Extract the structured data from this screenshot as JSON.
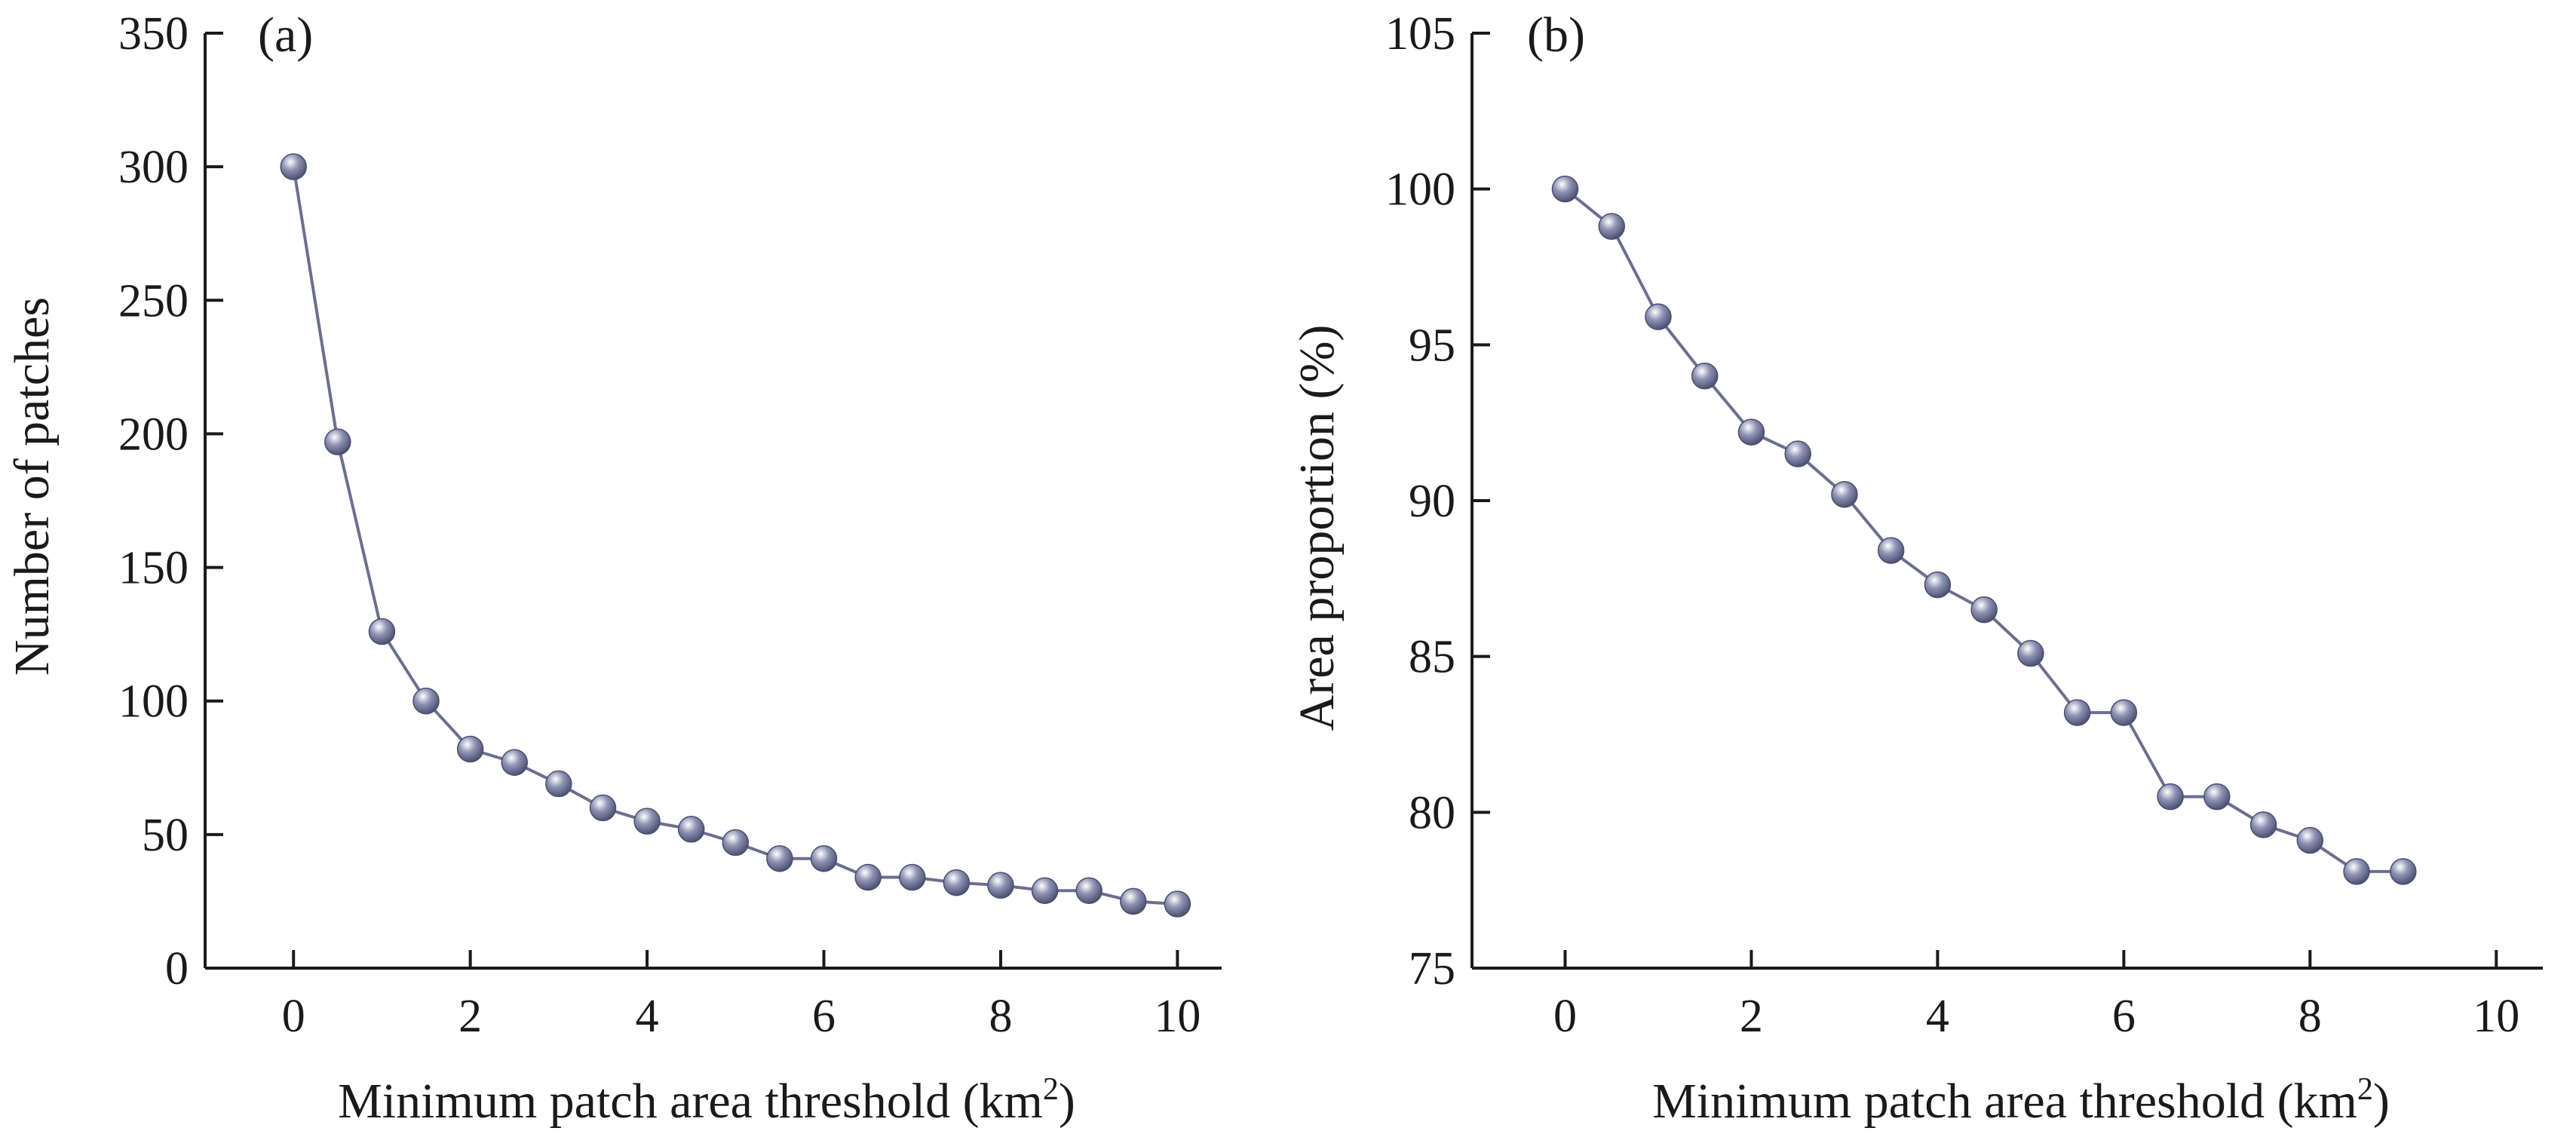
{
  "colors": {
    "line": "#6b6f8e",
    "marker_dark": "#4a4f70",
    "marker_mid": "#8e93b3",
    "marker_light": "#ffffff",
    "axis": "#1a1a1a"
  },
  "chart_data": [
    {
      "type": "line",
      "panel_label": "(a)",
      "xlabel": "Minimum patch area threshold (km",
      "xlabel_sup": "2",
      "xlabel_end": ")",
      "ylabel": "Number of patches",
      "xlim": [
        -1,
        10.5
      ],
      "ylim": [
        0,
        350
      ],
      "xticks": [
        0,
        2,
        4,
        6,
        8,
        10
      ],
      "yticks": [
        0,
        50,
        100,
        150,
        200,
        250,
        300,
        350
      ],
      "xtick_labels": [
        "0",
        "2",
        "4",
        "6",
        "8",
        "10"
      ],
      "ytick_labels": [
        "0",
        "50",
        "100",
        "150",
        "200",
        "250",
        "300",
        "350"
      ],
      "grid": false,
      "series": [
        {
          "x": [
            0,
            0.5,
            1,
            1.5,
            2,
            2.5,
            3,
            3.5,
            4,
            4.5,
            5,
            5.5,
            6,
            6.5,
            7,
            7.5,
            8,
            8.5,
            9,
            9.5,
            10
          ],
          "y": [
            300,
            197,
            126,
            100,
            82,
            77,
            69,
            60,
            55,
            52,
            47,
            41,
            41,
            34,
            34,
            32,
            31,
            29,
            29,
            25,
            24
          ]
        }
      ]
    },
    {
      "type": "line",
      "panel_label": "(b)",
      "xlabel": "Minimum patch area threshold (km",
      "xlabel_sup": "2",
      "xlabel_end": ")",
      "ylabel": "Area proportion (%)",
      "xlim": [
        -1,
        10.5
      ],
      "ylim": [
        75,
        105
      ],
      "xticks": [
        0,
        2,
        4,
        6,
        8,
        10
      ],
      "yticks": [
        75,
        80,
        85,
        90,
        95,
        100,
        105
      ],
      "xtick_labels": [
        "0",
        "2",
        "4",
        "6",
        "8",
        "10"
      ],
      "ytick_labels": [
        "75",
        "80",
        "85",
        "90",
        "95",
        "100",
        "105"
      ],
      "grid": false,
      "series": [
        {
          "x": [
            0,
            0.5,
            1,
            1.5,
            2,
            2.5,
            3,
            3.5,
            4,
            4.5,
            5,
            5.5,
            6,
            6.5,
            7,
            7.5,
            8,
            8.5,
            9
          ],
          "y": [
            100,
            98.8,
            95.9,
            94.0,
            92.2,
            91.5,
            90.2,
            88.4,
            87.3,
            86.5,
            85.1,
            83.2,
            83.2,
            80.5,
            80.5,
            79.6,
            79.1,
            78.1,
            78.1
          ]
        }
      ]
    }
  ]
}
